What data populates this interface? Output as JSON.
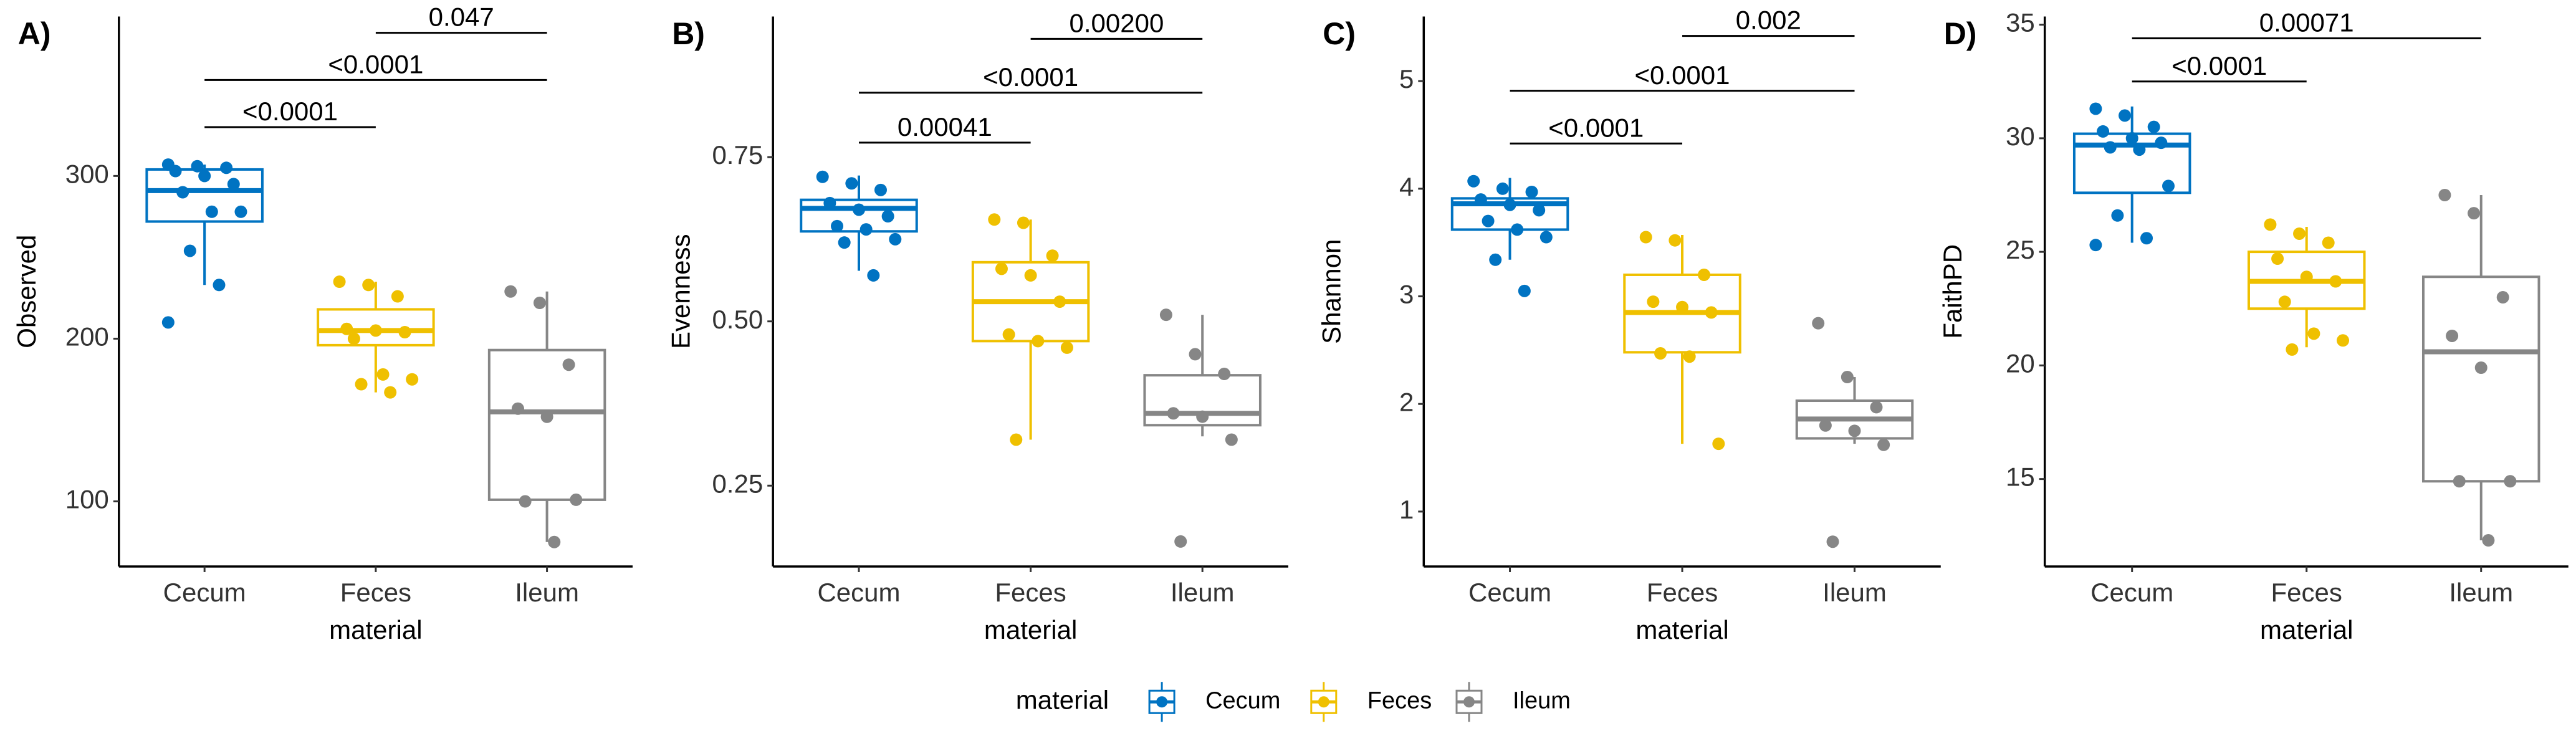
{
  "chart_data": [
    {
      "type": "box",
      "panel_label": "A)",
      "y_label": "Observed",
      "x_label": "material",
      "categories": [
        "Cecum",
        "Feces",
        "Ileum"
      ],
      "ylim": [
        60,
        398
      ],
      "yticks": [
        100,
        200,
        300
      ],
      "series": [
        {
          "name": "Cecum",
          "color": "#0073C2",
          "stats": {
            "min": 233,
            "q1": 272,
            "median": 291,
            "q3": 304,
            "max": 307
          },
          "points": [
            307,
            306,
            305,
            303,
            300,
            295,
            290,
            278,
            278,
            254,
            233,
            210
          ]
        },
        {
          "name": "Feces",
          "color": "#EFC000",
          "stats": {
            "min": 167,
            "q1": 196,
            "median": 205,
            "q3": 218,
            "max": 235
          },
          "points": [
            235,
            233,
            226,
            206,
            205,
            204,
            200,
            178,
            175,
            172,
            167
          ]
        },
        {
          "name": "Ileum",
          "color": "#868686",
          "stats": {
            "min": 75,
            "q1": 101,
            "median": 155,
            "q3": 193,
            "max": 229
          },
          "points": [
            229,
            222,
            184,
            157,
            152,
            101,
            100,
            75
          ]
        }
      ],
      "comparisons": [
        {
          "pair": [
            "Cecum",
            "Feces"
          ],
          "y": 330,
          "label": "<0.0001"
        },
        {
          "pair": [
            "Cecum",
            "Ileum"
          ],
          "y": 359,
          "label": "<0.0001"
        },
        {
          "pair": [
            "Feces",
            "Ileum"
          ],
          "y": 388,
          "label": "0.047"
        }
      ]
    },
    {
      "type": "box",
      "panel_label": "B)",
      "y_label": "Evenness",
      "x_label": "material",
      "categories": [
        "Cecum",
        "Feces",
        "Ileum"
      ],
      "ylim": [
        0.127,
        0.964
      ],
      "yticks": [
        {
          "value": 0.25,
          "label": "0.25"
        },
        {
          "value": 0.5,
          "label": "0.50"
        },
        {
          "value": 0.75,
          "label": "0.75"
        }
      ],
      "series": [
        {
          "name": "Cecum",
          "color": "#0073C2",
          "stats": {
            "min": 0.577,
            "q1": 0.637,
            "median": 0.672,
            "q3": 0.685,
            "max": 0.722
          },
          "points": [
            0.72,
            0.71,
            0.7,
            0.68,
            0.67,
            0.66,
            0.645,
            0.64,
            0.625,
            0.62,
            0.57
          ]
        },
        {
          "name": "Feces",
          "color": "#EFC000",
          "stats": {
            "min": 0.32,
            "q1": 0.47,
            "median": 0.53,
            "q3": 0.59,
            "max": 0.655
          },
          "points": [
            0.655,
            0.65,
            0.6,
            0.58,
            0.57,
            0.53,
            0.48,
            0.47,
            0.46,
            0.32
          ]
        },
        {
          "name": "Ileum",
          "color": "#868686",
          "stats": {
            "min": 0.325,
            "q1": 0.342,
            "median": 0.36,
            "q3": 0.418,
            "max": 0.51
          },
          "points": [
            0.51,
            0.45,
            0.42,
            0.36,
            0.355,
            0.32,
            0.165
          ]
        }
      ],
      "comparisons": [
        {
          "pair": [
            "Cecum",
            "Feces"
          ],
          "y": 0.772,
          "label": "0.00041"
        },
        {
          "pair": [
            "Cecum",
            "Ileum"
          ],
          "y": 0.848,
          "label": "<0.0001"
        },
        {
          "pair": [
            "Feces",
            "Ileum"
          ],
          "y": 0.93,
          "label": "0.00200"
        }
      ]
    },
    {
      "type": "box",
      "panel_label": "C)",
      "y_label": "Shannon",
      "x_label": "material",
      "categories": [
        "Cecum",
        "Feces",
        "Ileum"
      ],
      "ylim": [
        0.49,
        5.6
      ],
      "yticks": [
        1,
        2,
        3,
        4,
        5
      ],
      "series": [
        {
          "name": "Cecum",
          "color": "#0073C2",
          "stats": {
            "min": 3.34,
            "q1": 3.62,
            "median": 3.86,
            "q3": 3.91,
            "max": 4.1
          },
          "points": [
            4.07,
            4.0,
            3.97,
            3.9,
            3.85,
            3.8,
            3.7,
            3.62,
            3.55,
            3.34,
            3.05
          ]
        },
        {
          "name": "Feces",
          "color": "#EFC000",
          "stats": {
            "min": 1.63,
            "q1": 2.48,
            "median": 2.85,
            "q3": 3.2,
            "max": 3.57
          },
          "points": [
            3.55,
            3.52,
            3.2,
            2.95,
            2.9,
            2.85,
            2.47,
            2.44,
            1.63
          ]
        },
        {
          "name": "Ileum",
          "color": "#868686",
          "stats": {
            "min": 1.63,
            "q1": 1.68,
            "median": 1.86,
            "q3": 2.03,
            "max": 2.25
          },
          "points": [
            2.75,
            2.25,
            1.97,
            1.8,
            1.75,
            1.62,
            0.72
          ]
        }
      ],
      "comparisons": [
        {
          "pair": [
            "Cecum",
            "Feces"
          ],
          "y": 4.42,
          "label": "<0.0001"
        },
        {
          "pair": [
            "Cecum",
            "Ileum"
          ],
          "y": 4.91,
          "label": "<0.0001"
        },
        {
          "pair": [
            "Feces",
            "Ileum"
          ],
          "y": 5.42,
          "label": "0.002"
        }
      ]
    },
    {
      "type": "box",
      "panel_label": "D)",
      "y_label": "FaithPD",
      "x_label": "material",
      "categories": [
        "Cecum",
        "Feces",
        "Ileum"
      ],
      "ylim": [
        11.15,
        35.36
      ],
      "yticks": [
        15,
        20,
        25,
        30,
        35
      ],
      "series": [
        {
          "name": "Cecum",
          "color": "#0073C2",
          "stats": {
            "min": 25.4,
            "q1": 27.6,
            "median": 29.7,
            "q3": 30.2,
            "max": 31.4
          },
          "points": [
            31.3,
            31.0,
            30.5,
            30.3,
            30.0,
            29.8,
            29.6,
            29.5,
            27.9,
            26.6,
            25.6,
            25.3
          ]
        },
        {
          "name": "Feces",
          "color": "#EFC000",
          "stats": {
            "min": 20.8,
            "q1": 22.5,
            "median": 23.7,
            "q3": 25.0,
            "max": 26.1
          },
          "points": [
            26.2,
            25.8,
            25.4,
            24.7,
            23.9,
            23.7,
            22.8,
            21.4,
            21.1,
            20.7
          ]
        },
        {
          "name": "Ileum",
          "color": "#868686",
          "stats": {
            "min": 12.3,
            "q1": 14.9,
            "median": 20.6,
            "q3": 23.9,
            "max": 27.5
          },
          "points": [
            27.5,
            26.7,
            23.0,
            21.3,
            19.9,
            14.9,
            14.9,
            12.3
          ]
        }
      ],
      "comparisons": [
        {
          "pair": [
            "Cecum",
            "Feces"
          ],
          "y": 32.5,
          "label": "<0.0001"
        },
        {
          "pair": [
            "Cecum",
            "Ileum"
          ],
          "y": 34.4,
          "label": "0.00071"
        }
      ]
    }
  ],
  "legend": {
    "title": "material"
  }
}
